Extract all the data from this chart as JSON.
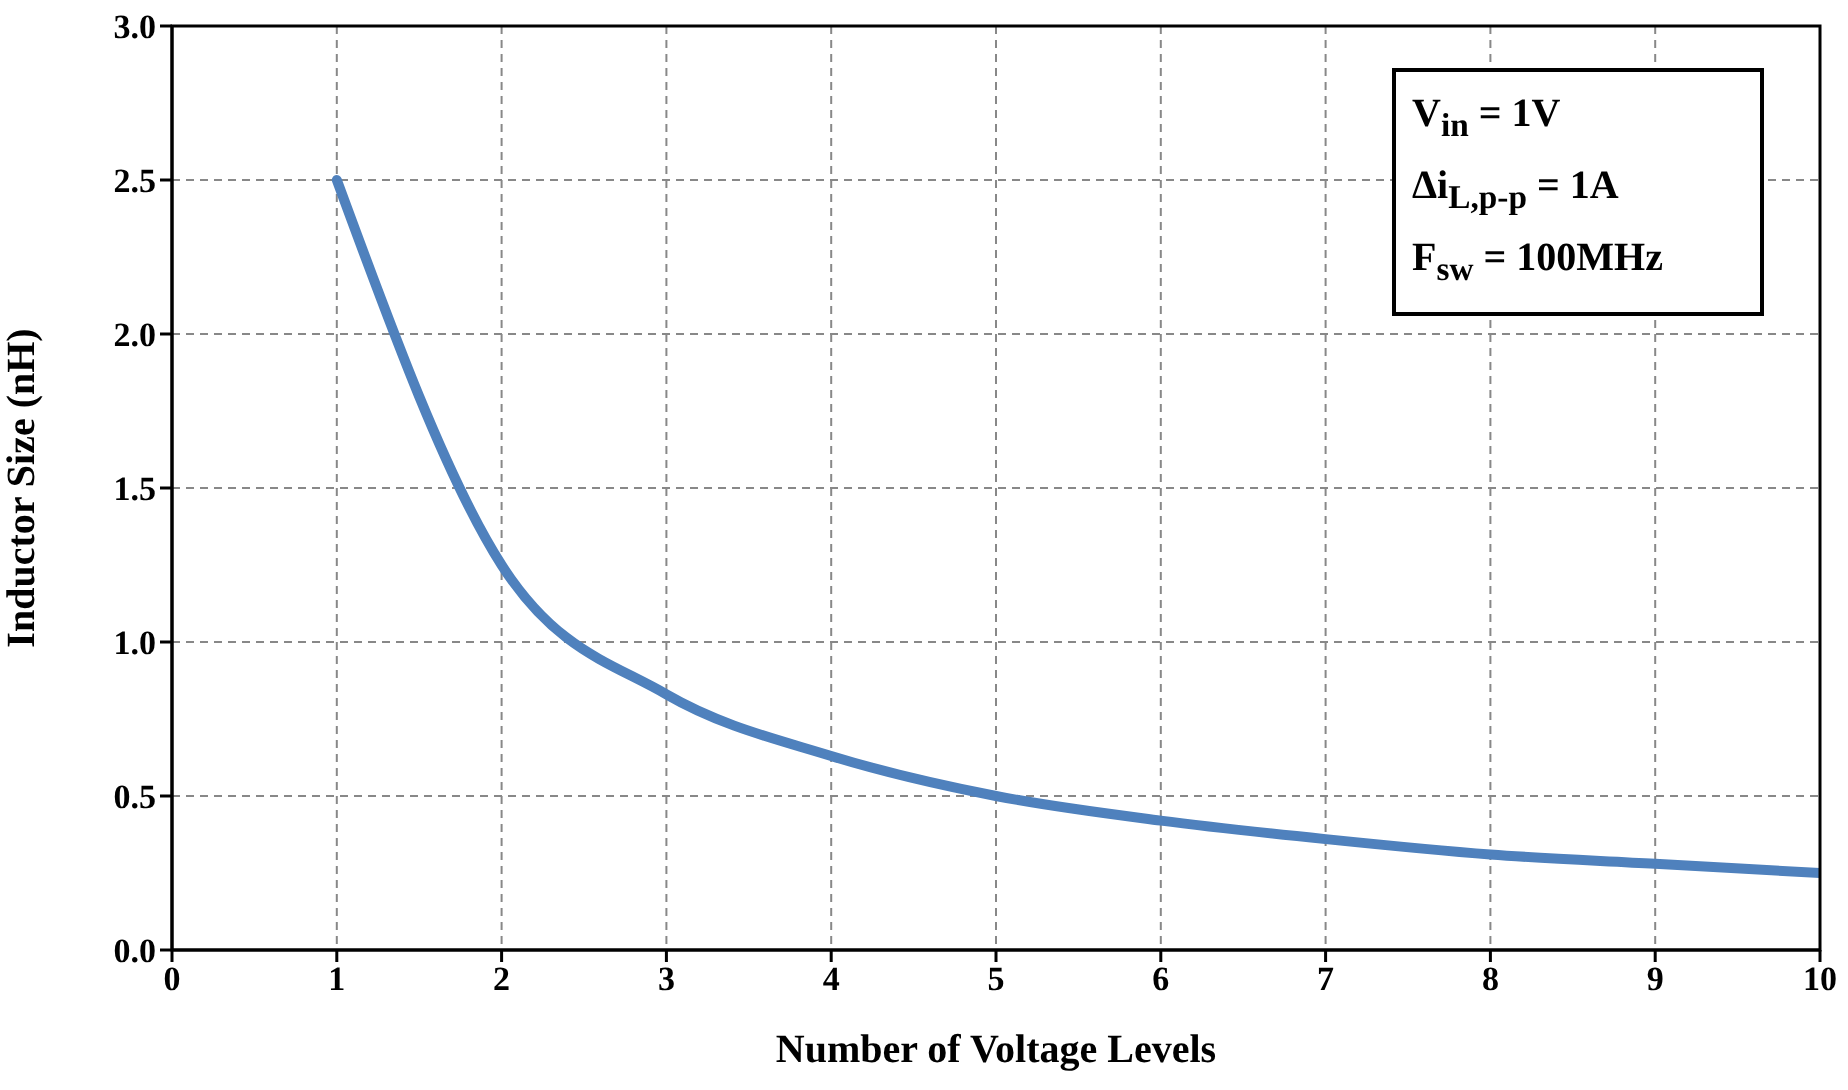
{
  "chart_data": {
    "type": "line",
    "xlabel": "Number of Voltage Levels",
    "ylabel": "Inductor Size (nH)",
    "x": [
      1,
      2,
      3,
      4,
      5,
      6,
      7,
      8,
      9,
      10
    ],
    "series": [
      {
        "color": "#4f81bd",
        "values": [
          2.5,
          1.25,
          0.83,
          0.63,
          0.5,
          0.42,
          0.36,
          0.31,
          0.28,
          0.25
        ]
      }
    ],
    "xlim": [
      0,
      10
    ],
    "xticks": [
      0,
      1,
      2,
      3,
      4,
      5,
      6,
      7,
      8,
      9,
      10
    ],
    "ylim": [
      0,
      3
    ],
    "yticks": [
      {
        "value": 0,
        "label": "0.0"
      },
      {
        "value": 0.5,
        "label": "0.5"
      },
      {
        "value": 1,
        "label": "1.0"
      },
      {
        "value": 1.5,
        "label": "1.5"
      },
      {
        "value": 2,
        "label": "2.0"
      },
      {
        "value": 2.5,
        "label": "2.5"
      },
      {
        "value": 3,
        "label": "3.0"
      }
    ],
    "grid": true,
    "marker": "none",
    "line_style": "solid",
    "annotations": [
      "V$_{in}$ = 1V",
      "Δi$_{L,p-p}$ = 1A",
      "F$_{sw}$ = 100MHz"
    ]
  }
}
